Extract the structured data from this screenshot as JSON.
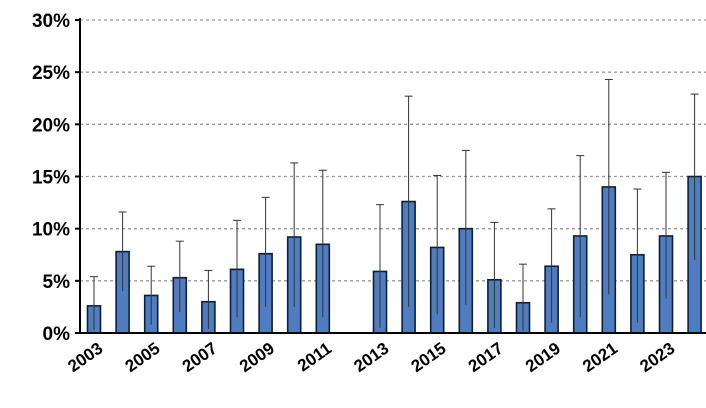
{
  "chart_data": {
    "type": "bar",
    "categories": [
      "2003",
      "2004",
      "2005",
      "2006",
      "2007",
      "2008",
      "2009",
      "2010",
      "2011",
      "2012",
      "2013",
      "2014",
      "2015",
      "2016",
      "2017",
      "2018",
      "2019",
      "2020",
      "2021",
      "2022",
      "2023",
      "2024"
    ],
    "x_tick_labels": [
      "2003",
      "2005",
      "2007",
      "2009",
      "2011",
      "2013",
      "2015",
      "2017",
      "2019",
      "2021",
      "2023"
    ],
    "series": [
      {
        "values": [
          2.6,
          7.8,
          3.6,
          5.3,
          3.0,
          6.1,
          7.6,
          9.2,
          8.5,
          null,
          5.9,
          12.6,
          8.2,
          10.0,
          5.1,
          2.9,
          6.4,
          9.3,
          14.0,
          7.5,
          9.3,
          15.0
        ],
        "error_low": [
          0.3,
          4.0,
          0.8,
          2.0,
          0.4,
          1.5,
          2.5,
          2.5,
          1.5,
          null,
          0.5,
          2.5,
          1.8,
          2.7,
          0.5,
          0.2,
          1.0,
          1.5,
          3.7,
          1.0,
          3.3,
          7.0
        ],
        "error_high": [
          5.4,
          11.6,
          6.4,
          8.8,
          6.0,
          10.8,
          13.0,
          16.3,
          15.6,
          null,
          12.3,
          22.7,
          15.1,
          17.5,
          10.6,
          6.6,
          11.9,
          17.0,
          24.3,
          13.8,
          15.4,
          22.9
        ]
      }
    ],
    "ylim": [
      0,
      30
    ],
    "y_ticks": [
      "0%",
      "5%",
      "10%",
      "15%",
      "20%",
      "25%",
      "30%"
    ],
    "y_tick_values": [
      0,
      5,
      10,
      15,
      20,
      25,
      30
    ],
    "grid": true,
    "colors": {
      "bar": "#4f7dc0",
      "bar_edge": "#0d1e3a",
      "grid": "#9a9a9a",
      "axis": "#000000"
    }
  }
}
